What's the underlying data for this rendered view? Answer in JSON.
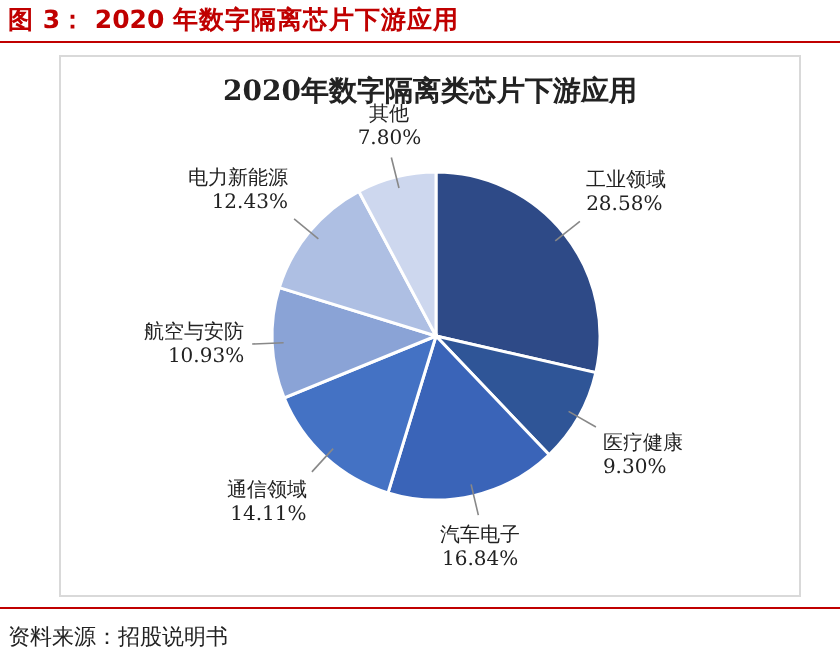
{
  "chart_data": {
    "type": "pie",
    "title": "图 3： 2020 年数字隔离芯片下游应用",
    "subtitle": "2020年数字隔离类芯片下游应用",
    "categories": [
      "工业领域",
      "医疗健康",
      "汽车电子",
      "通信领域",
      "航空与安防",
      "电力新能源",
      "其他"
    ],
    "values": [
      28.58,
      9.3,
      16.84,
      14.11,
      10.93,
      12.43,
      7.8
    ],
    "value_labels": [
      "28.58%",
      "9.30%",
      "16.84%",
      "14.11%",
      "10.93%",
      "12.43%",
      "7.80%"
    ],
    "colors": [
      "#2e4a87",
      "#2f5597",
      "#3a64b8",
      "#4472c4",
      "#8aa3d6",
      "#aebfe3",
      "#cdd7ee"
    ],
    "annotations": [
      "资料来源：招股说明书"
    ]
  }
}
